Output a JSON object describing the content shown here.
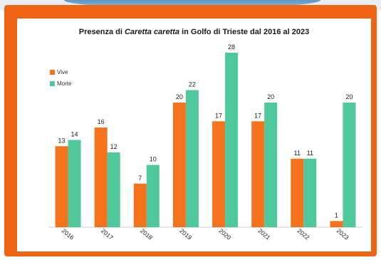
{
  "chart_data": {
    "type": "bar",
    "title": {
      "prefix": "Presenza di ",
      "species": "Caretta caretta",
      "suffix": " in Golfo di Trieste dal 2016 al 2023"
    },
    "categories": [
      "2016",
      "2017",
      "2018",
      "2019",
      "2020",
      "2021",
      "2022",
      "2023"
    ],
    "series": [
      {
        "name": "Vive",
        "color": "#f5731c",
        "values": [
          13,
          16,
          7,
          20,
          17,
          17,
          11,
          1
        ]
      },
      {
        "name": "Morte",
        "color": "#4fc89b",
        "values": [
          14,
          12,
          10,
          22,
          28,
          20,
          11,
          20
        ]
      }
    ],
    "ylim": [
      0,
      28
    ],
    "grid": false,
    "legend_position": "top-left"
  },
  "frame_color": "#ef6412"
}
